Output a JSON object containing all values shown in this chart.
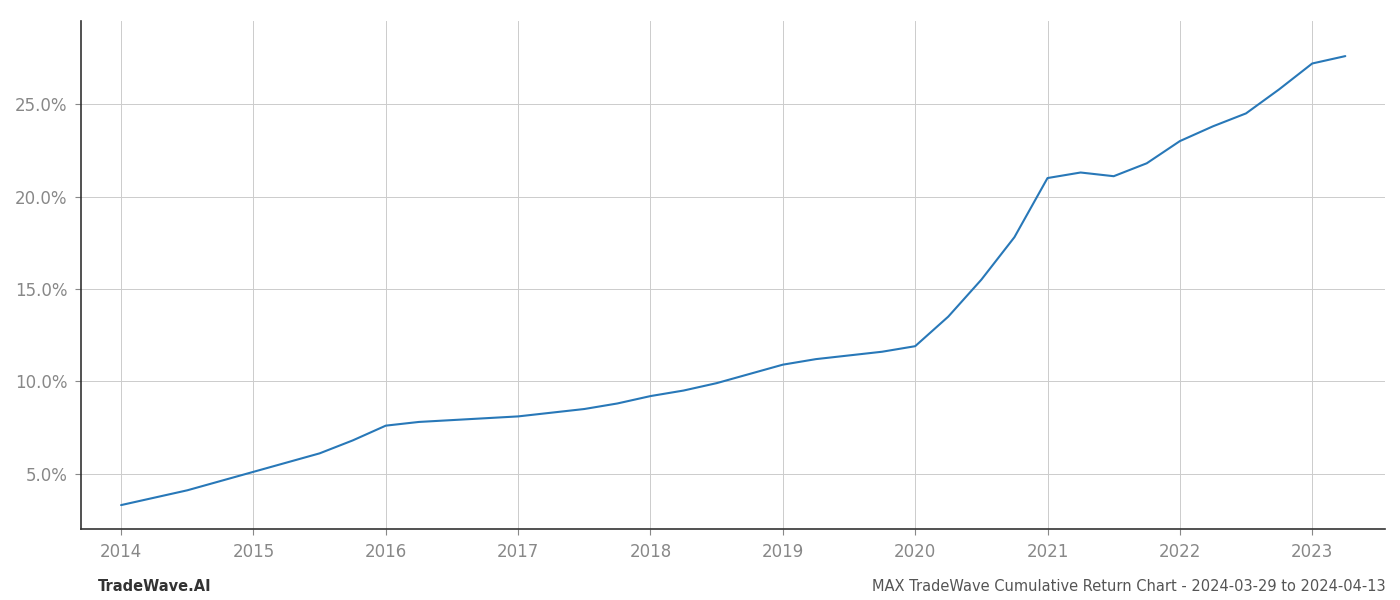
{
  "x_values": [
    2014.0,
    2014.25,
    2014.5,
    2014.75,
    2015.0,
    2015.25,
    2015.5,
    2015.75,
    2016.0,
    2016.25,
    2016.5,
    2016.75,
    2017.0,
    2017.25,
    2017.5,
    2017.75,
    2018.0,
    2018.25,
    2018.5,
    2018.75,
    2019.0,
    2019.25,
    2019.5,
    2019.75,
    2020.0,
    2020.25,
    2020.5,
    2020.75,
    2021.0,
    2021.25,
    2021.5,
    2021.75,
    2022.0,
    2022.25,
    2022.5,
    2022.75,
    2023.0,
    2023.25
  ],
  "y_values": [
    3.3,
    3.7,
    4.1,
    4.6,
    5.1,
    5.6,
    6.1,
    6.8,
    7.6,
    7.8,
    7.9,
    8.0,
    8.1,
    8.3,
    8.5,
    8.8,
    9.2,
    9.5,
    9.9,
    10.4,
    10.9,
    11.2,
    11.4,
    11.6,
    11.9,
    13.5,
    15.5,
    17.8,
    21.0,
    21.3,
    21.1,
    21.8,
    23.0,
    23.8,
    24.5,
    25.8,
    27.2,
    27.6
  ],
  "line_color": "#2878b8",
  "background_color": "#ffffff",
  "grid_color": "#cccccc",
  "footer_left": "TradeWave.AI",
  "footer_right": "MAX TradeWave Cumulative Return Chart - 2024-03-29 to 2024-04-13",
  "ytick_labels": [
    "5.0%",
    "10.0%",
    "15.0%",
    "20.0%",
    "25.0%"
  ],
  "ytick_values": [
    5.0,
    10.0,
    15.0,
    20.0,
    25.0
  ],
  "xtick_labels": [
    "2014",
    "2015",
    "2016",
    "2017",
    "2018",
    "2019",
    "2020",
    "2021",
    "2022",
    "2023"
  ],
  "xtick_values": [
    2014,
    2015,
    2016,
    2017,
    2018,
    2019,
    2020,
    2021,
    2022,
    2023
  ],
  "xlim": [
    2013.7,
    2023.55
  ],
  "ylim": [
    2.0,
    29.5
  ],
  "line_width": 1.5,
  "footer_fontsize": 10.5,
  "tick_fontsize": 12,
  "tick_color": "#888888"
}
